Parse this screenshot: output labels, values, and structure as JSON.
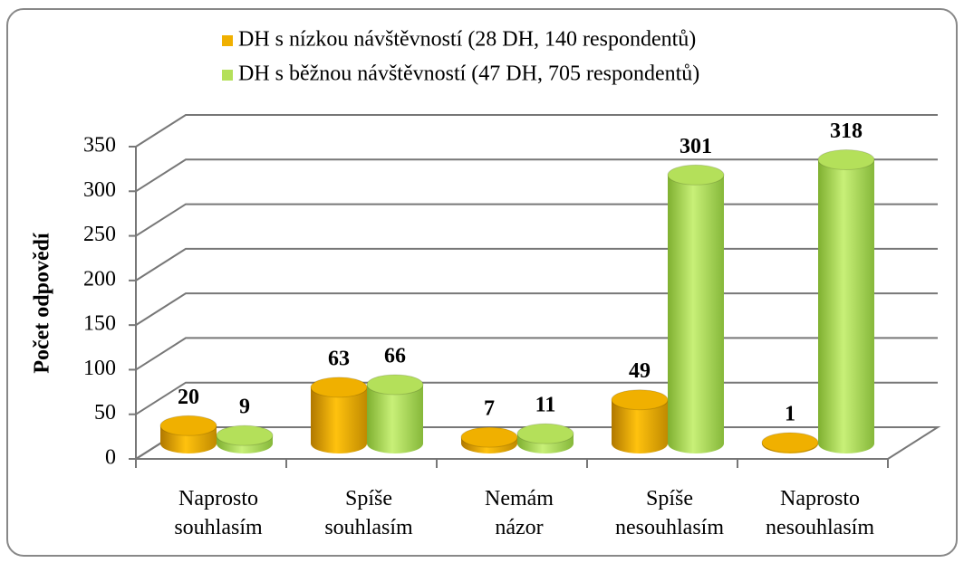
{
  "chart_data": {
    "type": "bar3d",
    "y_label": "Počet odpovědí",
    "categories": [
      "Naprosto souhlasím",
      "Spíše souhlasím",
      "Nemám názor",
      "Spíše nesouhlasím",
      "Naprosto nesouhlasím"
    ],
    "series": [
      {
        "name": "DH s nízkou návštěvností (28 DH, 140 respondentů)",
        "color": "#f0b000",
        "values": [
          20,
          63,
          7,
          49,
          1
        ]
      },
      {
        "name": "DH s běžnou návštěvností (47 DH, 705 respondentů)",
        "color": "#b4e05a",
        "values": [
          9,
          66,
          11,
          301,
          318
        ]
      }
    ],
    "ylim": [
      0,
      350
    ],
    "yticks": [
      0,
      50,
      100,
      150,
      200,
      250,
      300,
      350
    ],
    "grid": true,
    "legend": "top"
  }
}
